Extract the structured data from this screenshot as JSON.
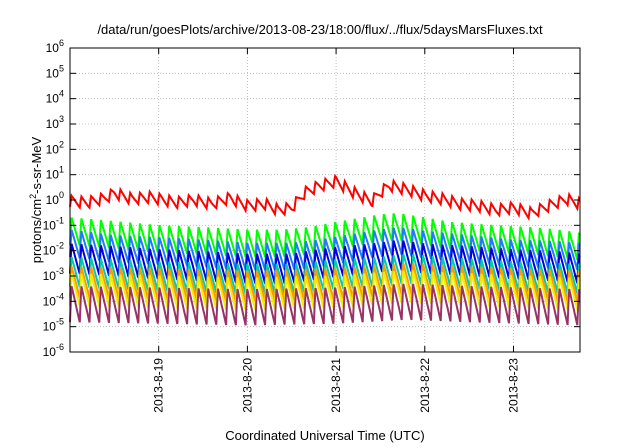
{
  "chart_data": {
    "type": "line",
    "title": "/data/run/goesPlots/archive/2013-08-23/18:00/flux/../flux/5daysMarsFluxes.txt",
    "xlabel": "Coordinated Universal Time (UTC)",
    "ylabel_pre": "protons/cm",
    "ylabel_sup": "2",
    "ylabel_post": "-s-sr-MeV",
    "x_tick_labels": [
      "2013-8-19",
      "2013-8-20",
      "2013-8-21",
      "2013-8-22",
      "2013-8-23"
    ],
    "x_tick_days": [
      1,
      2,
      3,
      4,
      5
    ],
    "xlim_days": [
      0,
      5.75
    ],
    "y_scale": "log",
    "y_tick_exponents": [
      -6,
      -5,
      -4,
      -3,
      -2,
      -1,
      0,
      1,
      2,
      3,
      4,
      5,
      6
    ],
    "ylim": [
      1e-06,
      1000000.0
    ],
    "grid": true,
    "series": [
      {
        "color": "#ff0000",
        "points": [
          [
            0,
            0.9
          ],
          [
            0.2,
            0.8
          ],
          [
            0.4,
            1.2
          ],
          [
            0.5,
            1.9
          ],
          [
            0.7,
            1.1
          ],
          [
            0.9,
            1.3
          ],
          [
            1.2,
            0.8
          ],
          [
            1.4,
            1.0
          ],
          [
            1.6,
            0.7
          ],
          [
            1.8,
            1.2
          ],
          [
            2.0,
            0.6
          ],
          [
            2.2,
            0.7
          ],
          [
            2.35,
            0.4
          ],
          [
            2.5,
            0.5
          ],
          [
            2.65,
            2.0
          ],
          [
            2.8,
            3.5
          ],
          [
            3.0,
            5.5
          ],
          [
            3.2,
            2.0
          ],
          [
            3.4,
            0.9
          ],
          [
            3.5,
            2.0
          ],
          [
            3.6,
            3.8
          ],
          [
            3.8,
            2.6
          ],
          [
            4.0,
            1.5
          ],
          [
            4.2,
            1.1
          ],
          [
            4.4,
            0.7
          ],
          [
            4.6,
            0.6
          ],
          [
            4.8,
            0.4
          ],
          [
            5.0,
            0.5
          ],
          [
            5.2,
            0.3
          ],
          [
            5.4,
            0.6
          ],
          [
            5.6,
            1.1
          ],
          [
            5.75,
            0.7
          ]
        ],
        "amp": 0.45,
        "period": 0.11
      },
      {
        "color": "#00ff00",
        "points": [
          [
            0,
            0.06
          ],
          [
            0.3,
            0.05
          ],
          [
            0.6,
            0.04
          ],
          [
            1.0,
            0.03
          ],
          [
            1.5,
            0.025
          ],
          [
            2.0,
            0.02
          ],
          [
            2.4,
            0.02
          ],
          [
            2.7,
            0.025
          ],
          [
            3.0,
            0.04
          ],
          [
            3.3,
            0.06
          ],
          [
            3.5,
            0.08
          ],
          [
            3.7,
            0.09
          ],
          [
            4.0,
            0.06
          ],
          [
            4.3,
            0.04
          ],
          [
            4.8,
            0.03
          ],
          [
            5.2,
            0.025
          ],
          [
            5.5,
            0.02
          ],
          [
            5.75,
            0.015
          ]
        ],
        "amp": 1.1,
        "period": 0.11
      },
      {
        "color": "#1e7bff",
        "points": [
          [
            0,
            0.02
          ],
          [
            0.5,
            0.012
          ],
          [
            1.0,
            0.01
          ],
          [
            1.5,
            0.008
          ],
          [
            2.0,
            0.006
          ],
          [
            2.5,
            0.006
          ],
          [
            2.8,
            0.008
          ],
          [
            3.1,
            0.012
          ],
          [
            3.4,
            0.018
          ],
          [
            3.7,
            0.025
          ],
          [
            4.0,
            0.018
          ],
          [
            4.5,
            0.012
          ],
          [
            5.0,
            0.008
          ],
          [
            5.5,
            0.007
          ],
          [
            5.75,
            0.006
          ]
        ],
        "amp": 1.1,
        "period": 0.11
      },
      {
        "color": "#0000dd",
        "points": [
          [
            0,
            0.005
          ],
          [
            0.5,
            0.004
          ],
          [
            1.0,
            0.003
          ],
          [
            1.5,
            0.0025
          ],
          [
            2.0,
            0.002
          ],
          [
            2.5,
            0.002
          ],
          [
            2.8,
            0.003
          ],
          [
            3.1,
            0.004
          ],
          [
            3.4,
            0.005
          ],
          [
            3.7,
            0.007
          ],
          [
            4.0,
            0.005
          ],
          [
            4.5,
            0.004
          ],
          [
            5.0,
            0.003
          ],
          [
            5.5,
            0.0025
          ],
          [
            5.75,
            0.002
          ]
        ],
        "amp": 1.2,
        "period": 0.11
      },
      {
        "color": "#00ccaa",
        "points": [
          [
            0,
            0.0015
          ],
          [
            0.5,
            0.0012
          ],
          [
            1.0,
            0.001
          ],
          [
            2.0,
            0.0008
          ],
          [
            2.5,
            0.0008
          ],
          [
            3.0,
            0.0012
          ],
          [
            3.5,
            0.0015
          ],
          [
            3.8,
            0.002
          ],
          [
            4.2,
            0.0015
          ],
          [
            5.0,
            0.001
          ],
          [
            5.75,
            0.0008
          ]
        ],
        "amp": 1.2,
        "period": 0.11
      },
      {
        "color": "#ff9900",
        "points": [
          [
            0,
            0.0006
          ],
          [
            1.0,
            0.0005
          ],
          [
            2.0,
            0.0004
          ],
          [
            3.0,
            0.0005
          ],
          [
            3.8,
            0.0008
          ],
          [
            4.5,
            0.0006
          ],
          [
            5.75,
            0.0004
          ]
        ],
        "amp": 1.25,
        "period": 0.11
      },
      {
        "color": "#eeee00",
        "points": [
          [
            0,
            0.0003
          ],
          [
            1.0,
            0.00025
          ],
          [
            2.0,
            0.0002
          ],
          [
            3.0,
            0.00025
          ],
          [
            3.8,
            0.0004
          ],
          [
            4.5,
            0.0003
          ],
          [
            5.75,
            0.0002
          ]
        ],
        "amp": 1.3,
        "period": 0.11
      },
      {
        "color": "#993366",
        "points": [
          [
            0,
            8e-05
          ],
          [
            1.0,
            7e-05
          ],
          [
            2.0,
            6e-05
          ],
          [
            3.0,
            7e-05
          ],
          [
            3.8,
            0.0001
          ],
          [
            4.5,
            8e-05
          ],
          [
            5.75,
            6e-05
          ]
        ],
        "amp": 1.45,
        "period": 0.11
      }
    ]
  }
}
